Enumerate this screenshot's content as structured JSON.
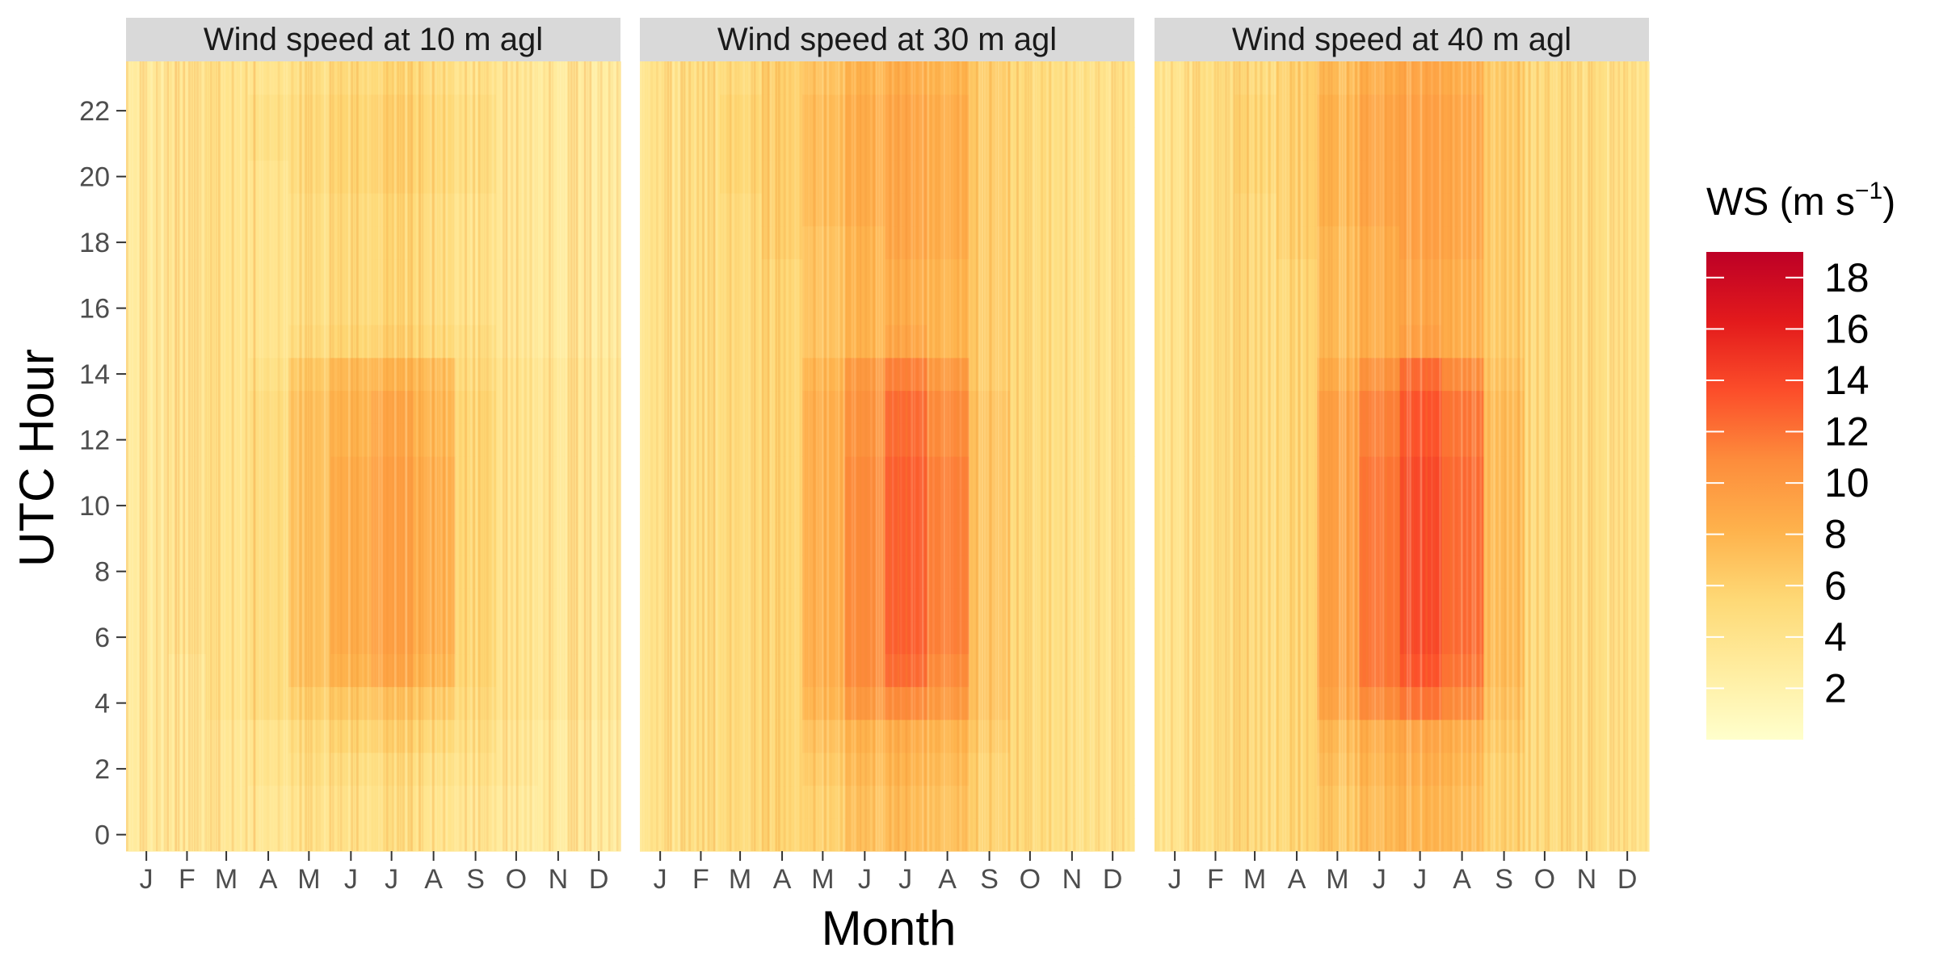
{
  "chart_data": {
    "type": "heatmap",
    "xlabel": "Month",
    "ylabel": "UTC Hour",
    "x_tick_labels": [
      "J",
      "F",
      "M",
      "A",
      "M",
      "J",
      "J",
      "A",
      "S",
      "O",
      "N",
      "D"
    ],
    "y_ticks": [
      0,
      2,
      4,
      6,
      8,
      10,
      12,
      14,
      16,
      18,
      20,
      22
    ],
    "ylim": [
      -0.5,
      23.5
    ],
    "xlim": [
      1,
      365
    ],
    "months": [
      1,
      2,
      3,
      4,
      5,
      6,
      7,
      8,
      9,
      10,
      11,
      12
    ],
    "hours": [
      0,
      1,
      2,
      3,
      4,
      5,
      6,
      7,
      8,
      9,
      10,
      11,
      12,
      13,
      14,
      15,
      16,
      17,
      18,
      19,
      20,
      21,
      22,
      23
    ],
    "color_scale": {
      "palette": "YlOrRd",
      "low_color": "#ffffb2",
      "high_color": "#bd0026",
      "stops": [
        "#ffffcc",
        "#ffeda0",
        "#fed976",
        "#feb24c",
        "#fd8d3c",
        "#fc4e2a",
        "#e31a1c",
        "#bd0026"
      ],
      "range": [
        0,
        19
      ],
      "legend_ticks": [
        2,
        4,
        6,
        8,
        10,
        12,
        14,
        16,
        18
      ]
    },
    "legend": {
      "title": "WS (m s",
      "title_superscript": "−1",
      "title_close": ")",
      "position": "right"
    },
    "panels": [
      {
        "title": "Wind speed at 10 m agl",
        "values": [
          [
            3,
            3,
            3,
            3,
            3,
            3,
            3,
            3,
            3,
            3,
            3,
            3,
            3,
            3,
            3,
            3,
            3,
            3,
            3,
            3,
            3,
            3,
            3,
            3
          ],
          [
            3,
            3,
            3,
            3,
            3,
            3,
            3.5,
            3.5,
            3.5,
            3.5,
            3.5,
            3.5,
            3.5,
            3.5,
            3.5,
            3.5,
            3.5,
            3.5,
            3.5,
            3.5,
            3.5,
            3.5,
            3.5,
            3.5
          ],
          [
            3.5,
            3.5,
            3.5,
            3.5,
            4,
            4,
            4,
            4,
            4,
            4,
            4,
            4,
            4,
            4,
            4,
            4,
            4,
            4,
            4,
            4,
            4,
            4,
            4,
            4
          ],
          [
            3.5,
            3.5,
            4,
            4,
            5,
            5,
            5,
            5,
            5,
            5,
            5,
            5,
            5,
            5,
            4.5,
            4,
            4,
            4,
            4,
            4,
            4,
            4.5,
            4.5,
            4
          ],
          [
            4,
            4,
            4.5,
            5,
            6,
            7,
            7,
            7,
            7,
            7,
            7,
            7,
            7,
            7,
            6.5,
            5,
            4.5,
            4.5,
            4.5,
            4.5,
            5,
            5,
            5,
            4.5
          ],
          [
            4,
            4,
            4.5,
            5.5,
            6.5,
            8,
            8.5,
            8.5,
            8.5,
            8.5,
            8.5,
            8.5,
            8,
            8,
            7.5,
            5.5,
            5,
            5,
            5,
            5,
            5.5,
            5.5,
            5.5,
            5
          ],
          [
            4.5,
            4.5,
            5,
            6,
            7,
            9,
            9.5,
            9.5,
            9.5,
            9.5,
            9.5,
            9.5,
            9,
            9,
            8,
            6,
            5.5,
            5.5,
            5.5,
            5.5,
            6,
            6,
            6,
            5.5
          ],
          [
            4,
            4,
            4.5,
            5.5,
            6.5,
            8,
            8.5,
            8.5,
            8.5,
            8.5,
            8.5,
            8.5,
            8,
            8,
            7.5,
            5.5,
            5,
            5,
            5,
            5,
            5.5,
            5.5,
            5.5,
            5
          ],
          [
            3.5,
            3.5,
            4,
            4.5,
            5,
            5.5,
            5.5,
            5.5,
            5.5,
            5.5,
            5.5,
            5.5,
            5.5,
            5.5,
            5,
            4.5,
            4,
            4,
            4,
            4,
            4.5,
            4.5,
            4.5,
            4
          ],
          [
            3,
            3,
            3.5,
            3.5,
            4,
            4,
            4,
            4,
            4,
            4,
            4,
            4,
            4,
            4,
            4,
            3.5,
            3.5,
            3.5,
            3.5,
            3.5,
            3.5,
            3.5,
            3.5,
            3.5
          ],
          [
            3,
            3,
            3,
            3,
            3.5,
            3.5,
            3.5,
            3.5,
            3.5,
            3.5,
            3.5,
            3.5,
            3.5,
            3.5,
            3.5,
            3,
            3,
            3,
            3,
            3,
            3,
            3,
            3,
            3
          ],
          [
            2.5,
            2.5,
            2.5,
            2.5,
            3,
            3,
            3,
            3,
            3,
            3,
            3,
            3,
            3,
            3,
            3,
            2.5,
            2.5,
            2.5,
            2.5,
            2.5,
            2.5,
            2.5,
            2.5,
            2.5
          ]
        ]
      },
      {
        "title": "Wind speed at 30 m agl",
        "values": [
          [
            4,
            4,
            4,
            4,
            4,
            4,
            4,
            4,
            4,
            4,
            4,
            4,
            4,
            4,
            4,
            4,
            4,
            4,
            4,
            4,
            4,
            4,
            4,
            4
          ],
          [
            4.5,
            4.5,
            4.5,
            4.5,
            4.5,
            4.5,
            4.5,
            4.5,
            4.5,
            4.5,
            4.5,
            4.5,
            4.5,
            4.5,
            4.5,
            4.5,
            4.5,
            4.5,
            4.5,
            4.5,
            4.5,
            4.5,
            4.5,
            4.5
          ],
          [
            5,
            5,
            5,
            5,
            5,
            5,
            5,
            5,
            5,
            5,
            5,
            5,
            5,
            5,
            5,
            5,
            5,
            5,
            5,
            5,
            5.5,
            5.5,
            5.5,
            5
          ],
          [
            5.5,
            5.5,
            5.5,
            5.5,
            5.5,
            5.5,
            5.5,
            5.5,
            5.5,
            5.5,
            5.5,
            5.5,
            5.5,
            5.5,
            5.5,
            5.5,
            5.5,
            5.5,
            6,
            6,
            6,
            6,
            6,
            6
          ],
          [
            6,
            6,
            6.5,
            7,
            8,
            8.5,
            8.5,
            8.5,
            8.5,
            8.5,
            8.5,
            8.5,
            8.5,
            8.5,
            8,
            7,
            7,
            7,
            7,
            7.5,
            7.5,
            7.5,
            7.5,
            7
          ],
          [
            7,
            7,
            7.5,
            8,
            10,
            11,
            11,
            11,
            11,
            11,
            11,
            11,
            10.5,
            10.5,
            10,
            8,
            8,
            8,
            8,
            8.5,
            8.5,
            8.5,
            8.5,
            8
          ],
          [
            7.5,
            7.5,
            8,
            8.5,
            11,
            12.5,
            13,
            13,
            13,
            13,
            13,
            13,
            12.5,
            12.5,
            11.5,
            9,
            8.5,
            8.5,
            9,
            9,
            9,
            9,
            9,
            8.5
          ],
          [
            7,
            7,
            7.5,
            8,
            10,
            11,
            11.5,
            11.5,
            11.5,
            11.5,
            11.5,
            11.5,
            11,
            11,
            10,
            8,
            8,
            8,
            8.5,
            8.5,
            8.5,
            8.5,
            8.5,
            8
          ],
          [
            6,
            6,
            6,
            6.5,
            7,
            7,
            7,
            7,
            7,
            7,
            7,
            7,
            7,
            7,
            6.5,
            6.5,
            6.5,
            6.5,
            6.5,
            6.5,
            6.5,
            6.5,
            6.5,
            6.5
          ],
          [
            5,
            5,
            5,
            5,
            5,
            5,
            5,
            5,
            5,
            5,
            5,
            5,
            5,
            5,
            5,
            5,
            5,
            5,
            5,
            5,
            5,
            5,
            5,
            5
          ],
          [
            4.5,
            4.5,
            4.5,
            4.5,
            4.5,
            4.5,
            4.5,
            4.5,
            4.5,
            4.5,
            4.5,
            4.5,
            4.5,
            4.5,
            4.5,
            4.5,
            4.5,
            4.5,
            4.5,
            4.5,
            4.5,
            4.5,
            4.5,
            4.5
          ],
          [
            4,
            4,
            4,
            4,
            4,
            4,
            4,
            4,
            4,
            4,
            4,
            4,
            4,
            4,
            4,
            4,
            4,
            4,
            4,
            4,
            4,
            4,
            4,
            4
          ]
        ]
      },
      {
        "title": "Wind speed at 40 m agl",
        "values": [
          [
            4,
            4,
            4,
            4,
            4,
            4,
            4,
            4,
            4,
            4,
            4,
            4,
            4,
            4,
            4,
            4,
            4,
            4,
            4,
            4,
            4,
            4,
            4,
            4
          ],
          [
            4.5,
            4.5,
            4.5,
            4.5,
            4.5,
            4.5,
            4.5,
            4.5,
            4.5,
            4.5,
            4.5,
            4.5,
            4.5,
            4.5,
            4.5,
            4.5,
            4.5,
            4.5,
            4.5,
            4.5,
            4.5,
            4.5,
            4.5,
            4.5
          ],
          [
            5,
            5,
            5,
            5,
            5,
            5,
            5,
            5,
            5,
            5,
            5,
            5,
            5,
            5,
            5,
            5,
            5,
            5,
            5,
            5,
            5.5,
            5.5,
            5.5,
            5
          ],
          [
            5.5,
            5.5,
            5.5,
            5.5,
            5.5,
            5.5,
            5.5,
            5.5,
            5.5,
            5.5,
            5.5,
            5.5,
            5.5,
            5.5,
            5.5,
            5.5,
            5.5,
            5.5,
            6,
            6,
            6,
            6,
            6,
            6
          ],
          [
            6.5,
            6.5,
            7,
            7.5,
            9,
            9.5,
            9.5,
            9.5,
            9.5,
            9.5,
            9.5,
            9.5,
            9.5,
            9.5,
            8.5,
            7.5,
            7.5,
            7.5,
            7.5,
            8,
            8,
            8,
            8,
            7.5
          ],
          [
            7.5,
            7.5,
            8,
            8.5,
            11,
            12,
            12,
            12,
            12,
            12,
            12,
            12,
            11.5,
            11.5,
            10.5,
            8.5,
            8.5,
            8.5,
            8.5,
            9,
            9,
            9,
            9,
            8.5
          ],
          [
            8,
            8,
            8.5,
            9,
            12,
            13.5,
            14,
            14,
            14,
            14,
            14,
            14,
            13.5,
            13.5,
            12.5,
            9.5,
            9,
            9,
            9.5,
            9.5,
            9.5,
            9.5,
            9.5,
            9
          ],
          [
            7.5,
            7.5,
            8,
            8.5,
            11,
            12,
            12.5,
            12.5,
            12.5,
            12.5,
            12.5,
            12.5,
            12,
            12,
            11,
            8.5,
            8.5,
            8.5,
            9,
            9,
            9,
            9,
            9,
            8.5
          ],
          [
            6,
            6,
            6,
            6.5,
            7,
            7.5,
            7.5,
            7.5,
            7.5,
            7.5,
            7.5,
            7.5,
            7.5,
            7.5,
            7,
            6.5,
            6.5,
            6.5,
            6.5,
            6.5,
            6.5,
            6.5,
            6.5,
            6.5
          ],
          [
            5,
            5,
            5,
            5,
            5,
            5,
            5,
            5,
            5,
            5,
            5,
            5,
            5,
            5,
            5,
            5,
            5,
            5,
            5,
            5,
            5,
            5,
            5,
            5
          ],
          [
            4.5,
            4.5,
            4.5,
            4.5,
            4.5,
            4.5,
            4.5,
            4.5,
            4.5,
            4.5,
            4.5,
            4.5,
            4.5,
            4.5,
            4.5,
            4.5,
            4.5,
            4.5,
            4.5,
            4.5,
            4.5,
            4.5,
            4.5,
            4.5
          ],
          [
            4,
            4,
            4,
            4,
            4,
            4,
            4,
            4,
            4,
            4,
            4,
            4,
            4,
            4,
            4,
            4,
            4,
            4,
            4,
            4,
            4,
            4,
            4,
            4
          ]
        ]
      }
    ]
  }
}
